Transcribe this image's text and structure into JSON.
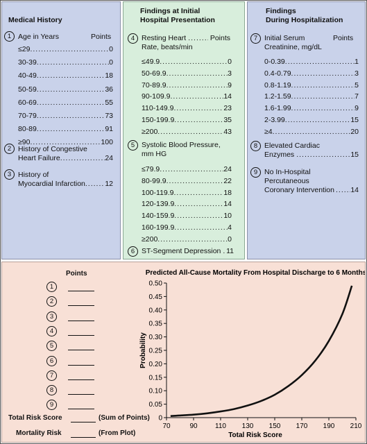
{
  "medical_history": {
    "title": "Medical History",
    "age": {
      "num": "1",
      "label": "Age in Years",
      "points_label": "Points",
      "rows": [
        {
          "label": "≤29",
          "value": "0"
        },
        {
          "label": "30-39",
          "value": "0"
        },
        {
          "label": "40-49",
          "value": "18"
        },
        {
          "label": "50-59",
          "value": "36"
        },
        {
          "label": "60-69",
          "value": "55"
        },
        {
          "label": "70-79",
          "value": "73"
        },
        {
          "label": "80-89",
          "value": "91"
        },
        {
          "label": "≥90",
          "value": "100"
        }
      ]
    },
    "chf": {
      "num": "2",
      "line1": "History of Congestive",
      "line2": "Heart Failure",
      "value": "24"
    },
    "mi": {
      "num": "3",
      "line1": "History of",
      "line2": "Myocardial Infarction",
      "value": "12"
    }
  },
  "initial_presentation": {
    "title_line1": "Findings at Initial",
    "title_line2": "Hospital Presentation",
    "hr": {
      "num": "4",
      "label_line1": "Resting Heart",
      "points_label": "Points",
      "label_line2": "Rate, beats/min",
      "rows": [
        {
          "label": "≤49.9",
          "value": "0"
        },
        {
          "label": "50-69.9",
          "value": "3"
        },
        {
          "label": "70-89.9",
          "value": "9"
        },
        {
          "label": "90-109.9",
          "value": "14"
        },
        {
          "label": "110-149.9",
          "value": "23"
        },
        {
          "label": "150-199.9",
          "value": "35"
        },
        {
          "label": "≥200",
          "value": "43"
        }
      ]
    },
    "sbp": {
      "num": "5",
      "label_line1": "Systolic Blood Pressure,",
      "label_line2": "mm HG",
      "rows": [
        {
          "label": "≤79.9",
          "value": "24"
        },
        {
          "label": "80-99.9",
          "value": "22"
        },
        {
          "label": "100-119.9",
          "value": "18"
        },
        {
          "label": "120-139.9",
          "value": "14"
        },
        {
          "label": "140-159.9",
          "value": "10"
        },
        {
          "label": "160-199.9",
          "value": "4"
        },
        {
          "label": "≥200",
          "value": "0"
        }
      ]
    },
    "st": {
      "num": "6",
      "label": "ST-Segment Depression",
      "value": "11"
    }
  },
  "during_hospitalization": {
    "title_line1": "Findings",
    "title_line2": "During Hospitalization",
    "creat": {
      "num": "7",
      "label_line1": "Initial Serum",
      "points_label": "Points",
      "label_line2": "Creatinine, mg/dL",
      "rows": [
        {
          "label": "0-0.39",
          "value": "1"
        },
        {
          "label": "0.4-0.79",
          "value": "3"
        },
        {
          "label": "0.8-1.19",
          "value": "5"
        },
        {
          "label": "1.2-1.59",
          "value": "7"
        },
        {
          "label": "1.6-1.99",
          "value": "9"
        },
        {
          "label": "2-3.99",
          "value": "15"
        },
        {
          "label": "≥4",
          "value": "20"
        }
      ]
    },
    "enz": {
      "num": "8",
      "line1": "Elevated Cardiac",
      "line2": "Enzymes",
      "value": "15"
    },
    "pci": {
      "num": "9",
      "line1": "No In-Hospital",
      "line2": "Percutaneous",
      "line3": "Coronary Intervention",
      "value": "14"
    }
  },
  "worksheet": {
    "points_title": "Points",
    "items": [
      "1",
      "2",
      "3",
      "4",
      "5",
      "6",
      "7",
      "8",
      "9"
    ],
    "total_label": "Total Risk Score",
    "total_note": "(Sum of Points)",
    "mortality_label": "Mortality Risk",
    "mortality_note": "(From Plot)"
  },
  "chart_data": {
    "type": "line",
    "title": "Predicted All-Cause Mortality From Hospital Discharge to 6 Months",
    "xlabel": "Total Risk Score",
    "ylabel": "Probability",
    "xlim": [
      70,
      210
    ],
    "ylim": [
      0,
      0.5
    ],
    "xticks": [
      70,
      90,
      110,
      130,
      150,
      170,
      190,
      210
    ],
    "yticks": [
      0,
      0.05,
      0.1,
      0.15,
      0.2,
      0.25,
      0.3,
      0.35,
      0.4,
      0.45,
      0.5
    ],
    "ytick_labels": [
      "0",
      "0.05",
      "0.10",
      "0.15",
      "0.20",
      "0.25",
      "0.30",
      "0.35",
      "0.40",
      "0.45",
      "0.50"
    ],
    "grid": false,
    "series": [
      {
        "x": [
          73,
          80,
          90,
          100,
          110,
          120,
          130,
          140,
          150,
          160,
          170,
          180,
          190,
          200,
          207
        ],
        "y": [
          0.006,
          0.008,
          0.011,
          0.016,
          0.023,
          0.032,
          0.045,
          0.062,
          0.085,
          0.117,
          0.158,
          0.212,
          0.285,
          0.385,
          0.49
        ]
      }
    ]
  }
}
